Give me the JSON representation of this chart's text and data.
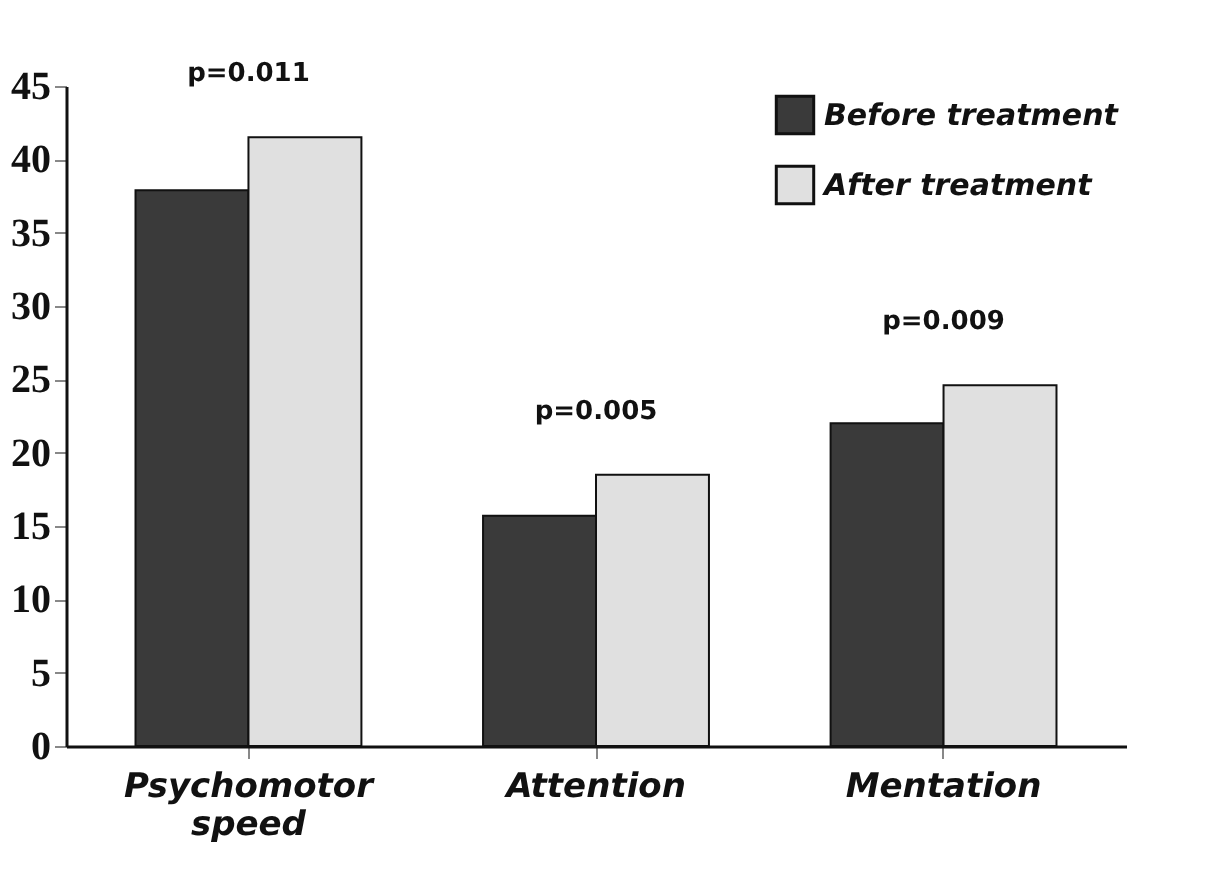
{
  "chart_data": {
    "type": "bar",
    "categories": [
      "Psychomotor speed",
      "Attention",
      "Mentation"
    ],
    "series": [
      {
        "name": "Before treatment",
        "color": "#3a3a3a",
        "values": [
          37.9,
          15.7,
          22.0
        ]
      },
      {
        "name": "After treatment",
        "color": "#e0e0e0",
        "values": [
          41.5,
          18.5,
          24.6
        ]
      }
    ],
    "ylim": [
      0,
      45
    ],
    "yticks": [
      0,
      5,
      10,
      15,
      20,
      25,
      30,
      35,
      40,
      45
    ],
    "grid": false,
    "legend": "top right",
    "annotations": [
      "p=0.011",
      "p=0.005",
      "p=0.009"
    ]
  }
}
